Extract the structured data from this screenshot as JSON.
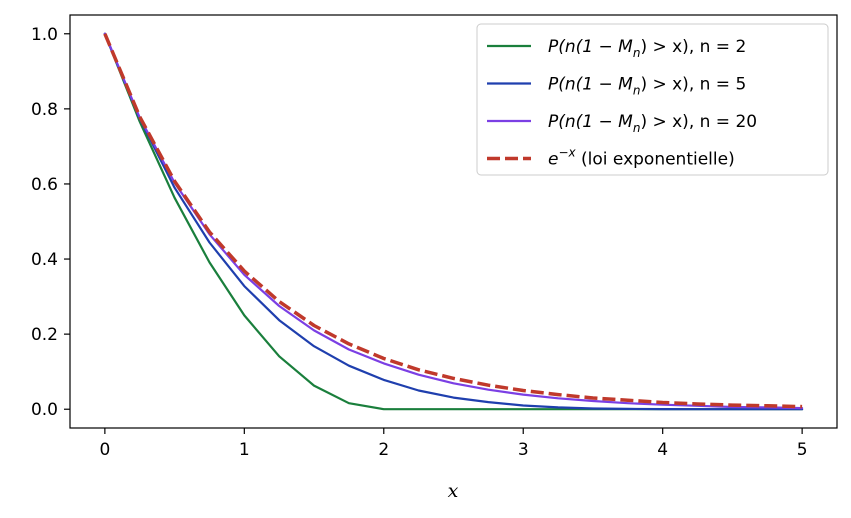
{
  "chart_data": {
    "type": "line",
    "xlabel": "x",
    "ylabel": "",
    "title": "",
    "xlim": [
      -0.25,
      5.25
    ],
    "ylim": [
      -0.05,
      1.05
    ],
    "x_ticks": [
      0,
      1,
      2,
      3,
      4,
      5
    ],
    "y_ticks": [
      0.0,
      0.2,
      0.4,
      0.6,
      0.8,
      1.0
    ],
    "x_tick_labels": [
      "0",
      "1",
      "2",
      "3",
      "4",
      "5"
    ],
    "y_tick_labels": [
      "0.0",
      "0.2",
      "0.4",
      "0.6",
      "0.8",
      "1.0"
    ],
    "grid": false,
    "legend_position": "top-right",
    "x": [
      0,
      0.25,
      0.5,
      0.75,
      1.0,
      1.25,
      1.5,
      1.75,
      2.0,
      2.25,
      2.5,
      2.75,
      3.0,
      3.25,
      3.5,
      3.75,
      4.0,
      4.25,
      4.5,
      4.75,
      5.0
    ],
    "series": [
      {
        "name_parts": [
          "P(n(1 − M",
          "n",
          ") > x), n = 2"
        ],
        "color": "#1a7f3c",
        "dash": "solid",
        "values": [
          1.0,
          0.766,
          0.563,
          0.391,
          0.25,
          0.141,
          0.063,
          0.016,
          0.0,
          0.0,
          0.0,
          0.0,
          0.0,
          0.0,
          0.0,
          0.0,
          0.0,
          0.0,
          0.0,
          0.0,
          0.0
        ]
      },
      {
        "name_parts": [
          "P(n(1 − M",
          "n",
          ") > x), n = 5"
        ],
        "color": "#1f3fae",
        "dash": "solid",
        "values": [
          1.0,
          0.774,
          0.59,
          0.444,
          0.328,
          0.237,
          0.168,
          0.116,
          0.078,
          0.05,
          0.031,
          0.019,
          0.01,
          0.005,
          0.002,
          0.001,
          0.0003,
          0.0001,
          0.0,
          0.0,
          0.0
        ]
      },
      {
        "name_parts": [
          "P(n(1 − M",
          "n",
          ") > x), n = 20"
        ],
        "color": "#7b3fe4",
        "dash": "solid",
        "values": [
          1.0,
          0.777,
          0.603,
          0.466,
          0.358,
          0.275,
          0.21,
          0.159,
          0.122,
          0.092,
          0.069,
          0.052,
          0.039,
          0.029,
          0.022,
          0.016,
          0.012,
          0.009,
          0.006,
          0.005,
          0.003
        ]
      },
      {
        "name_parts": [
          "e",
          "−x",
          " (loi exponentielle)"
        ],
        "color": "#c0392b",
        "dash": "dashed",
        "values": [
          1.0,
          0.779,
          0.607,
          0.472,
          0.368,
          0.287,
          0.223,
          0.174,
          0.135,
          0.105,
          0.082,
          0.064,
          0.05,
          0.039,
          0.03,
          0.024,
          0.018,
          0.014,
          0.011,
          0.009,
          0.007
        ]
      }
    ]
  }
}
